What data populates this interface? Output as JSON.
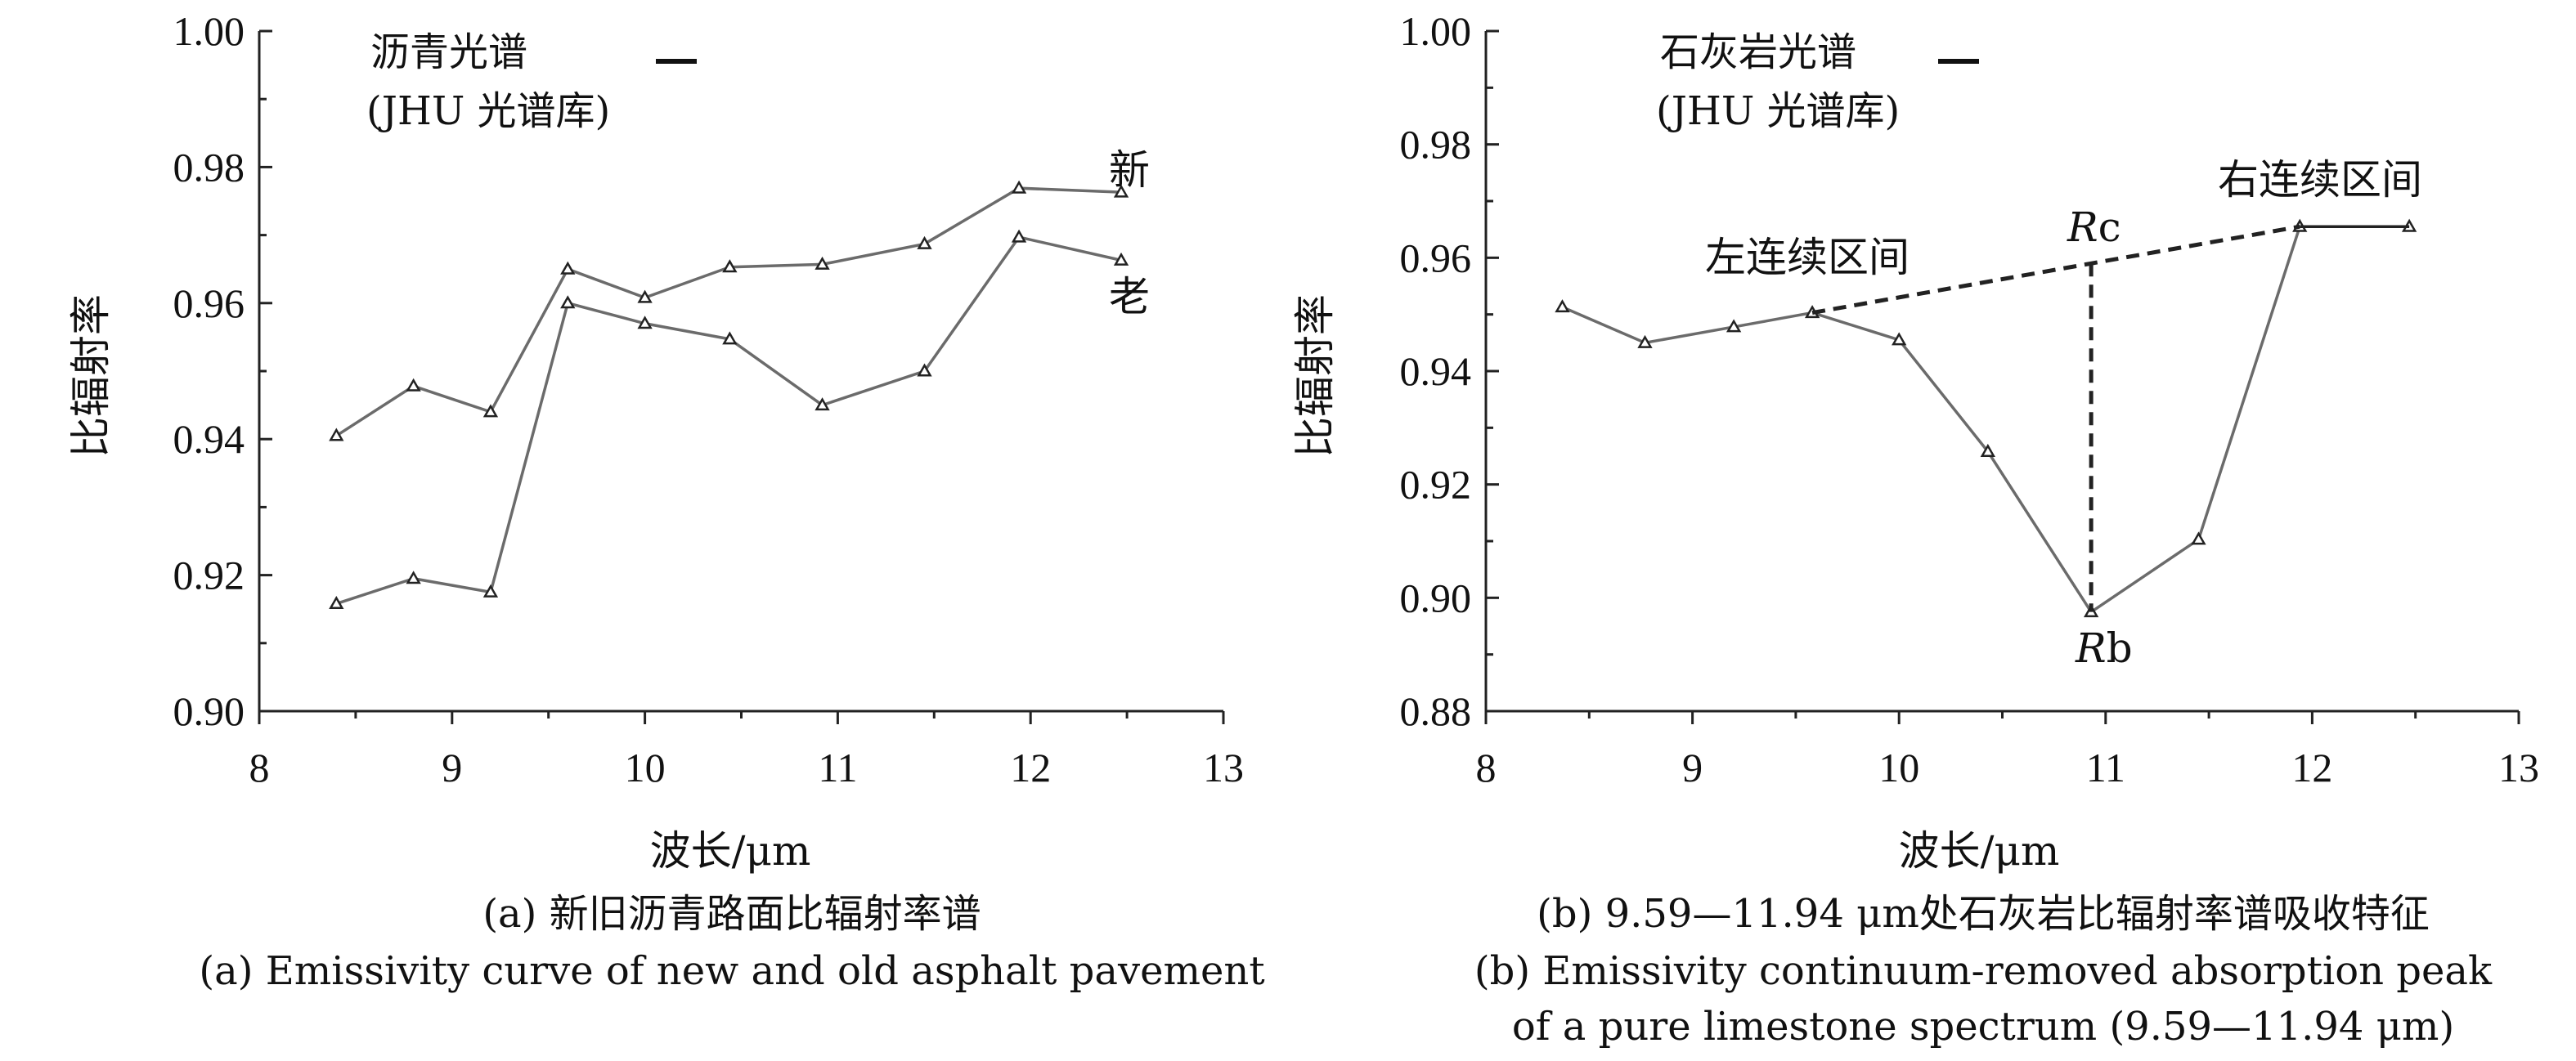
{
  "chart_data": [
    {
      "type": "line",
      "panel_label": "(a)",
      "legend": {
        "line1": "沥青光谱",
        "line2": "(JHU 光谱库)"
      },
      "xlabel": "波长/μm",
      "ylabel": "比辐射率",
      "xlim": [
        8,
        13
      ],
      "ylim": [
        0.9,
        1.0
      ],
      "x_ticks": [
        "8",
        "9",
        "10",
        "11",
        "12",
        "13"
      ],
      "y_ticks": [
        "0.90",
        "0.92",
        "0.94",
        "0.96",
        "0.98",
        "1.00"
      ],
      "series": [
        {
          "name": "新",
          "x": [
            8.4,
            8.8,
            9.2,
            9.6,
            10.0,
            10.44,
            10.92,
            11.45,
            11.94,
            12.47
          ],
          "y": [
            0.9405,
            0.9478,
            0.944,
            0.965,
            0.9608,
            0.9653,
            0.9657,
            0.9687,
            0.9769,
            0.9763
          ]
        },
        {
          "name": "老",
          "x": [
            8.4,
            8.8,
            9.2,
            9.6,
            10.0,
            10.44,
            10.92,
            11.45,
            11.94,
            12.47
          ],
          "y": [
            0.9158,
            0.9195,
            0.9175,
            0.96,
            0.957,
            0.9547,
            0.945,
            0.95,
            0.9697,
            0.9663
          ]
        }
      ],
      "caption_cn": "(a) 新旧沥青路面比辐射率谱",
      "caption_en": "(a) Emissivity curve of new and old asphalt pavement"
    },
    {
      "type": "line",
      "panel_label": "(b)",
      "legend": {
        "line1": "石灰岩光谱",
        "line2": "(JHU 光谱库)"
      },
      "xlabel": "波长/μm",
      "ylabel": "比辐射率",
      "xlim": [
        8,
        13
      ],
      "ylim": [
        0.88,
        1.0
      ],
      "x_ticks": [
        "8",
        "9",
        "10",
        "11",
        "12",
        "13"
      ],
      "y_ticks": [
        "0.88",
        "0.90",
        "0.92",
        "0.94",
        "0.96",
        "0.98",
        "1.00"
      ],
      "series": [
        {
          "x": [
            8.37,
            8.77,
            9.2,
            9.58,
            10.0,
            10.43,
            10.93,
            11.45,
            11.94,
            12.47
          ],
          "y": [
            0.9513,
            0.945,
            0.9478,
            0.9503,
            0.9455,
            0.9258,
            0.8975,
            0.9103,
            0.9655,
            0.9655
          ]
        }
      ],
      "continuum": {
        "x": [
          9.58,
          11.94
        ],
        "y": [
          0.9503,
          0.9655
        ]
      },
      "annotations": {
        "left_interval": "左连续区间",
        "right_interval": "右连续区间",
        "rc": {
          "italic": "R",
          "rest": "c"
        },
        "rb": {
          "italic": "R",
          "rest": "b"
        }
      },
      "caption_cn": "(b) 9.59—11.94 μm处石灰岩比辐射率谱吸收特征",
      "caption_en_line1": "(b) Emissivity continuum-removed absorption peak",
      "caption_en_line2": "of a pure limestone spectrum (9.59—11.94 μm)"
    }
  ]
}
